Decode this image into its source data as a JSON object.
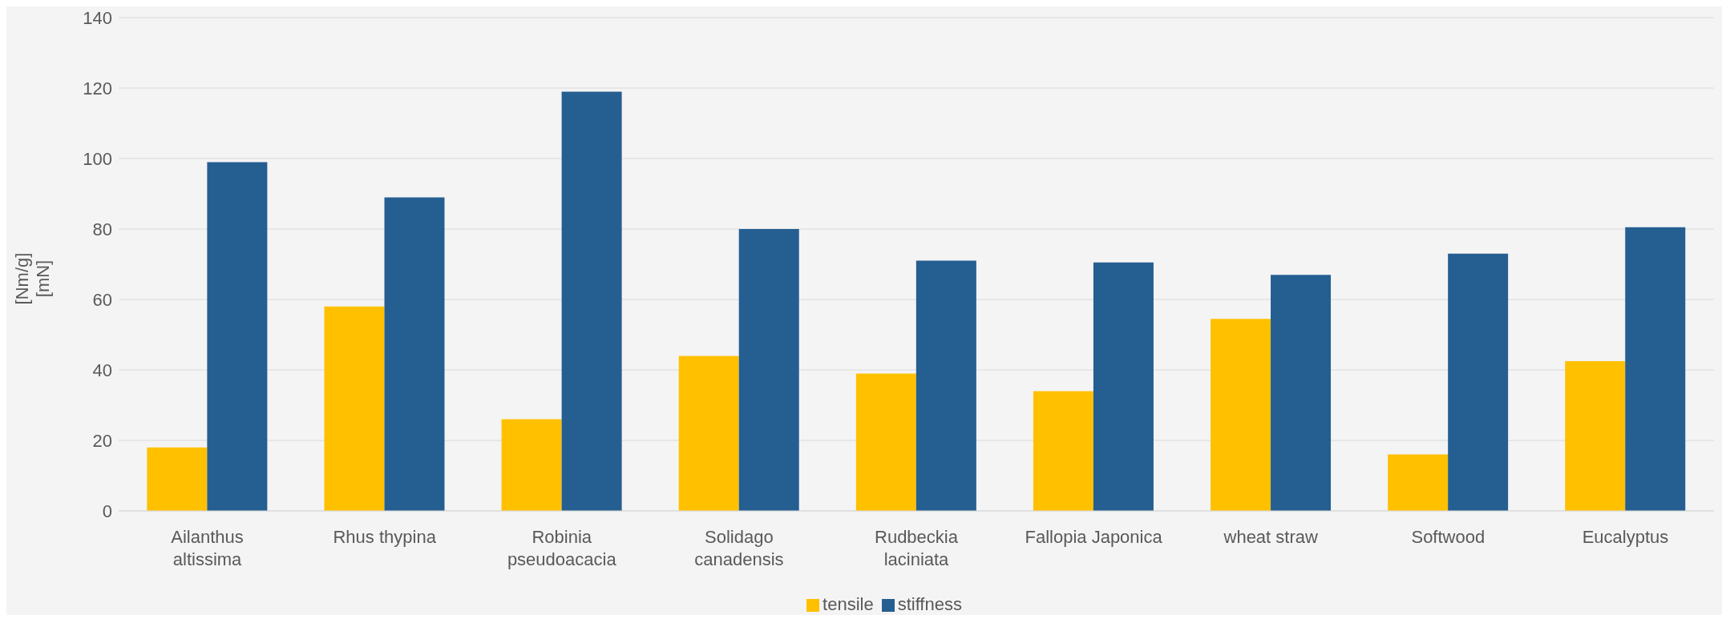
{
  "chart_data": {
    "type": "bar",
    "ylabel": "[Nm/g]\n[mN]",
    "categories": [
      "Ailanthus altissima",
      "Rhus thypina",
      "Robinia pseudoacacia",
      "Solidago canadensis",
      "Rudbeckia laciniata",
      "Fallopia Japonica",
      "wheat straw",
      "Softwood",
      "Eucalyptus"
    ],
    "series": [
      {
        "name": "tensile",
        "color": "#ffc000",
        "values": [
          18,
          58,
          26,
          44,
          39,
          34,
          54.5,
          16,
          42.5
        ]
      },
      {
        "name": "stiffness",
        "color": "#255e91",
        "values": [
          99,
          89,
          119,
          80,
          71,
          70.5,
          67,
          73,
          80.5
        ]
      }
    ],
    "ylim": [
      0,
      140
    ],
    "yticks": [
      0,
      20,
      40,
      60,
      80,
      100,
      120,
      140
    ],
    "grid": "y",
    "legend": "bottom"
  }
}
